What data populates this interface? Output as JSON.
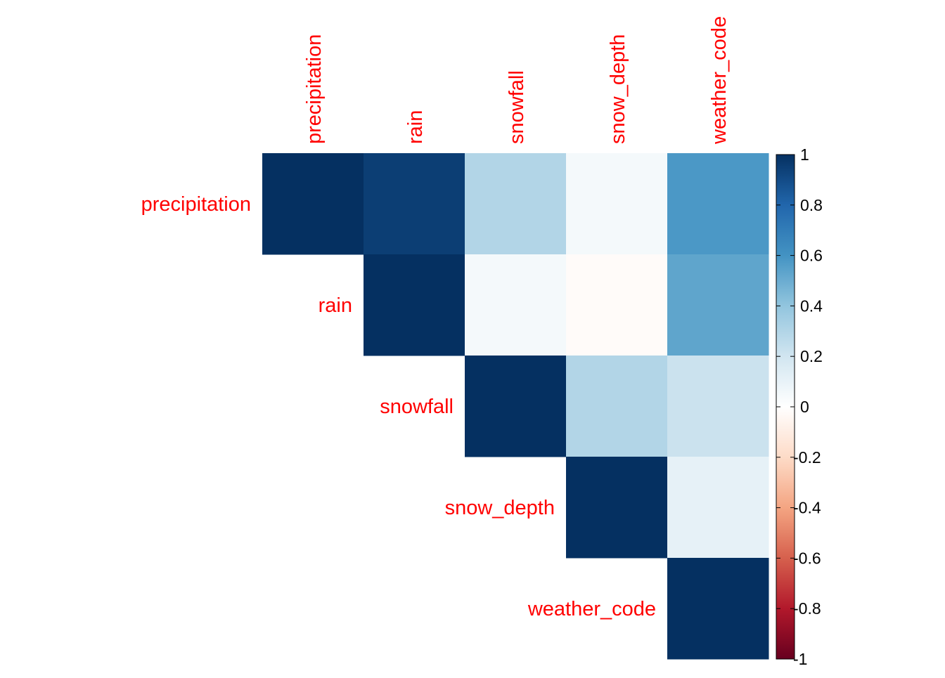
{
  "chart_data": {
    "type": "heatmap",
    "subtype": "correlation-matrix-upper-triangle",
    "title": "",
    "variables": [
      "precipitation",
      "rain",
      "snowfall",
      "snow_depth",
      "weather_code"
    ],
    "values": [
      [
        1.0,
        0.95,
        0.3,
        0.05,
        0.58
      ],
      [
        null,
        1.0,
        0.05,
        -0.02,
        0.53
      ],
      [
        null,
        null,
        1.0,
        0.3,
        0.22
      ],
      [
        null,
        null,
        null,
        1.0,
        0.11
      ],
      [
        null,
        null,
        null,
        null,
        1.0
      ]
    ],
    "color_scale": {
      "range": [
        -1,
        1
      ],
      "ticks": [
        "1",
        "0.8",
        "0.6",
        "0.4",
        "0.2",
        "0",
        "-0.2",
        "-0.4",
        "-0.6",
        "-0.8",
        "-1"
      ],
      "tick_values": [
        1,
        0.8,
        0.6,
        0.4,
        0.2,
        0,
        -0.2,
        -0.4,
        -0.6,
        -0.8,
        -1
      ],
      "palette": [
        "#67001F",
        "#B2182B",
        "#D6604D",
        "#F4A582",
        "#FDDBC7",
        "#FFFFFF",
        "#D1E5F0",
        "#92C5DE",
        "#4393C3",
        "#2166AC",
        "#053061"
      ]
    },
    "label_color": "#FF0000",
    "legend_placement": "right",
    "grid": false
  }
}
